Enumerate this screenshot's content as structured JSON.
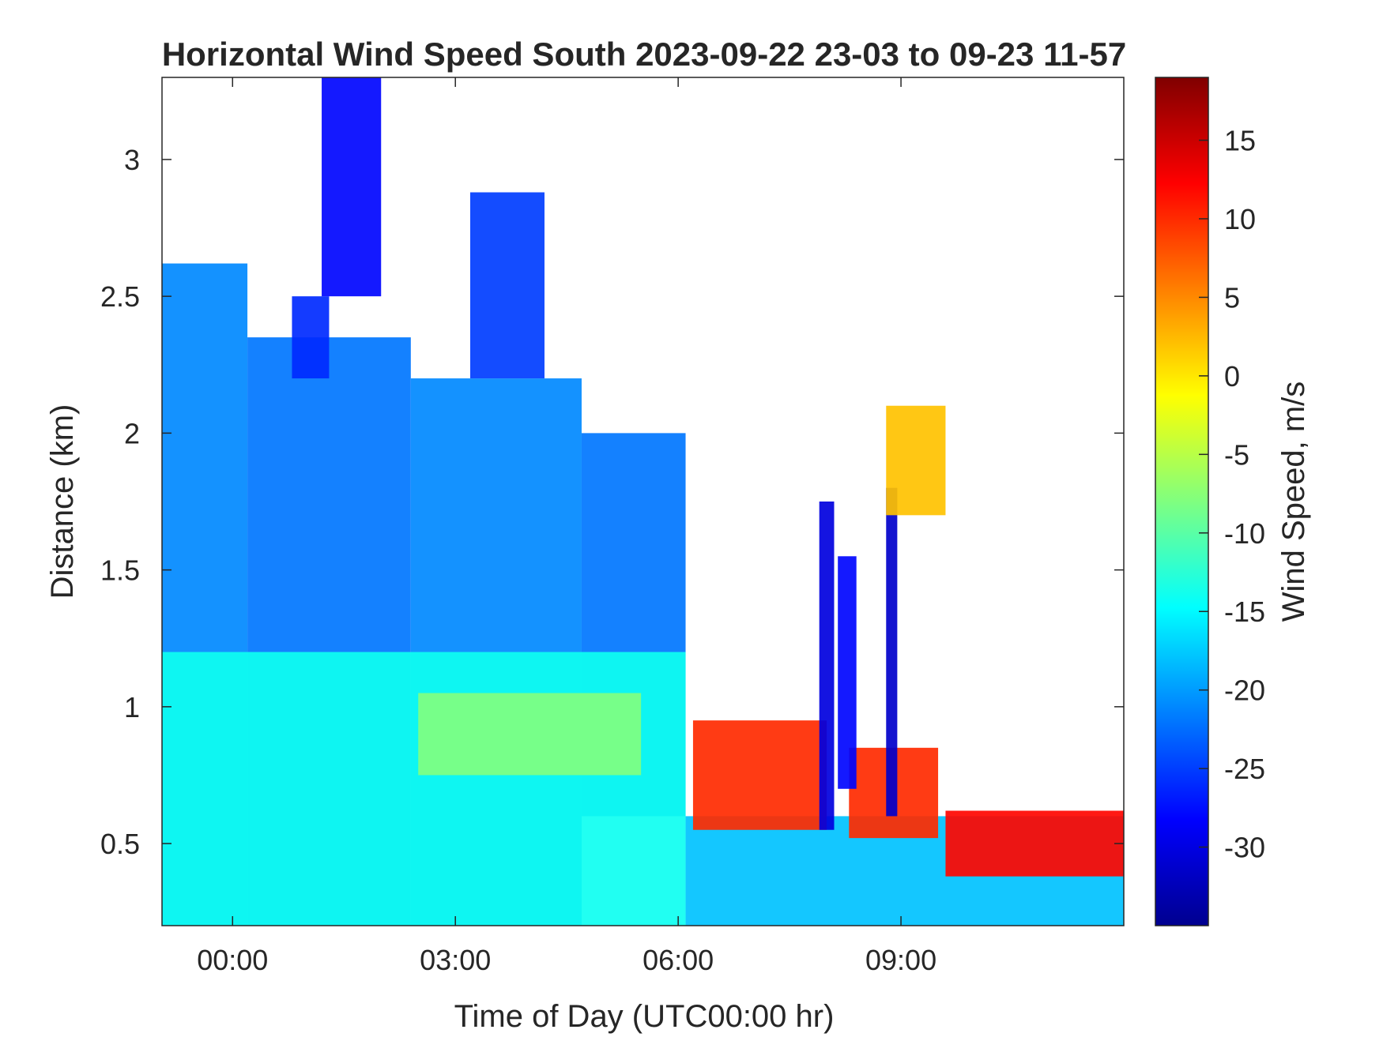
{
  "chart_data": {
    "type": "heatmap",
    "title": "Horizontal Wind Speed South 2023-09-22 23-03 to 09-23 11-57",
    "xlabel": "Time of Day (UTC00:00 hr)",
    "ylabel": "Distance (km)",
    "colorbar_label": "Wind Speed, m/s",
    "colormap": "jet",
    "x_range_hours": [
      -0.95,
      12.0
    ],
    "y_range_km": [
      0.2,
      3.3
    ],
    "color_range_ms": [
      -35,
      19
    ],
    "x_ticks": [
      {
        "value": 0,
        "label": "00:00"
      },
      {
        "value": 3,
        "label": "03:00"
      },
      {
        "value": 6,
        "label": "06:00"
      },
      {
        "value": 9,
        "label": "09:00"
      }
    ],
    "y_ticks": [
      {
        "value": 0.5,
        "label": "0.5"
      },
      {
        "value": 1,
        "label": "1"
      },
      {
        "value": 1.5,
        "label": "1.5"
      },
      {
        "value": 2,
        "label": "2"
      },
      {
        "value": 2.5,
        "label": "2.5"
      },
      {
        "value": 3,
        "label": "3"
      }
    ],
    "colorbar_ticks": [
      {
        "value": 15,
        "label": "15"
      },
      {
        "value": 10,
        "label": "10"
      },
      {
        "value": 5,
        "label": "5"
      },
      {
        "value": 0,
        "label": "0"
      },
      {
        "value": -5,
        "label": "-5"
      },
      {
        "value": -10,
        "label": "-10"
      },
      {
        "value": -15,
        "label": "-15"
      },
      {
        "value": -20,
        "label": "-20"
      },
      {
        "value": -25,
        "label": "-25"
      },
      {
        "value": -30,
        "label": "-30"
      }
    ],
    "grid": false,
    "data_regions": [
      {
        "x": [
          -0.95,
          0.2
        ],
        "y": [
          0.2,
          2.62
        ],
        "speed": -21
      },
      {
        "x": [
          0.2,
          2.4
        ],
        "y": [
          0.2,
          2.35
        ],
        "speed": -22
      },
      {
        "x": [
          2.4,
          4.7
        ],
        "y": [
          0.2,
          2.2
        ],
        "speed": -21
      },
      {
        "x": [
          3.2,
          4.2
        ],
        "y": [
          2.2,
          2.88
        ],
        "speed": -25
      },
      {
        "x": [
          0.8,
          1.3
        ],
        "y": [
          2.2,
          2.5
        ],
        "speed": -26
      },
      {
        "x": [
          1.2,
          2.0
        ],
        "y": [
          2.5,
          3.3
        ],
        "speed": -28
      },
      {
        "x": [
          4.7,
          6.1
        ],
        "y": [
          0.6,
          2.0
        ],
        "speed": -22
      },
      {
        "x": [
          6.1,
          12.0
        ],
        "y": [
          0.2,
          0.6
        ],
        "speed": -18
      },
      {
        "x": [
          -0.95,
          6.1
        ],
        "y": [
          0.2,
          1.2
        ],
        "speed": -14
      },
      {
        "x": [
          2.5,
          5.5
        ],
        "y": [
          0.75,
          1.05
        ],
        "speed": -8
      },
      {
        "x": [
          6.2,
          8.0
        ],
        "y": [
          0.55,
          0.95
        ],
        "speed": 10
      },
      {
        "x": [
          8.3,
          9.5
        ],
        "y": [
          0.52,
          0.85
        ],
        "speed": 10
      },
      {
        "x": [
          9.6,
          12.0
        ],
        "y": [
          0.38,
          0.62
        ],
        "speed": 12
      },
      {
        "x": [
          7.9,
          8.1
        ],
        "y": [
          0.55,
          1.75
        ],
        "speed": -30
      },
      {
        "x": [
          8.15,
          8.4
        ],
        "y": [
          0.7,
          1.55
        ],
        "speed": -28
      },
      {
        "x": [
          8.8,
          8.95
        ],
        "y": [
          0.6,
          1.8
        ],
        "speed": -31
      },
      {
        "x": [
          8.8,
          9.6
        ],
        "y": [
          1.7,
          2.1
        ],
        "speed": 2
      }
    ]
  }
}
